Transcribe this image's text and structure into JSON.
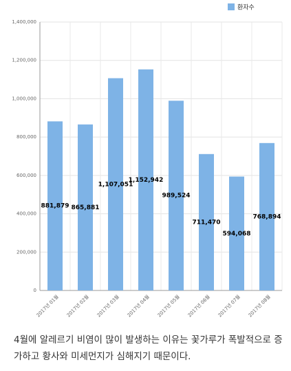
{
  "chart_data": {
    "type": "bar",
    "categories": [
      "2017년 01월",
      "2017년 02월",
      "2017년 03월",
      "2017년 04월",
      "2017년 05월",
      "2017년 06월",
      "2017년 07월",
      "2017년 08월"
    ],
    "series": [
      {
        "name": "환자수",
        "color": "#7eb3e6",
        "values": [
          881879,
          865881,
          1107051,
          1152942,
          989524,
          711470,
          594068,
          768894
        ],
        "value_labels": [
          "881,879",
          "865,881",
          "1,107,051",
          "1,152,942",
          "989,524",
          "711,470",
          "594,068",
          "768,894"
        ]
      }
    ],
    "ylim": [
      0,
      1400000
    ],
    "yticks": [
      0,
      {
        "value": 200000,
        "label": "200,000"
      },
      {
        "value": 400000,
        "label": "400,000"
      },
      {
        "value": 600000,
        "label": "600,000"
      },
      {
        "value": 800000,
        "label": "800,000"
      },
      {
        "value": 1000000,
        "label": "1,000,000"
      },
      {
        "value": 1200000,
        "label": "1,200,000"
      },
      {
        "value": 1400000,
        "label": "1,400,000"
      }
    ],
    "grid": true,
    "legend": "top-right"
  },
  "caption": "4월에 알레르기 비염이 많이 발생하는 이유는 꽃가루가 폭발적으로 증가하고 황사와 미세먼지가 심해지기 때문이다."
}
